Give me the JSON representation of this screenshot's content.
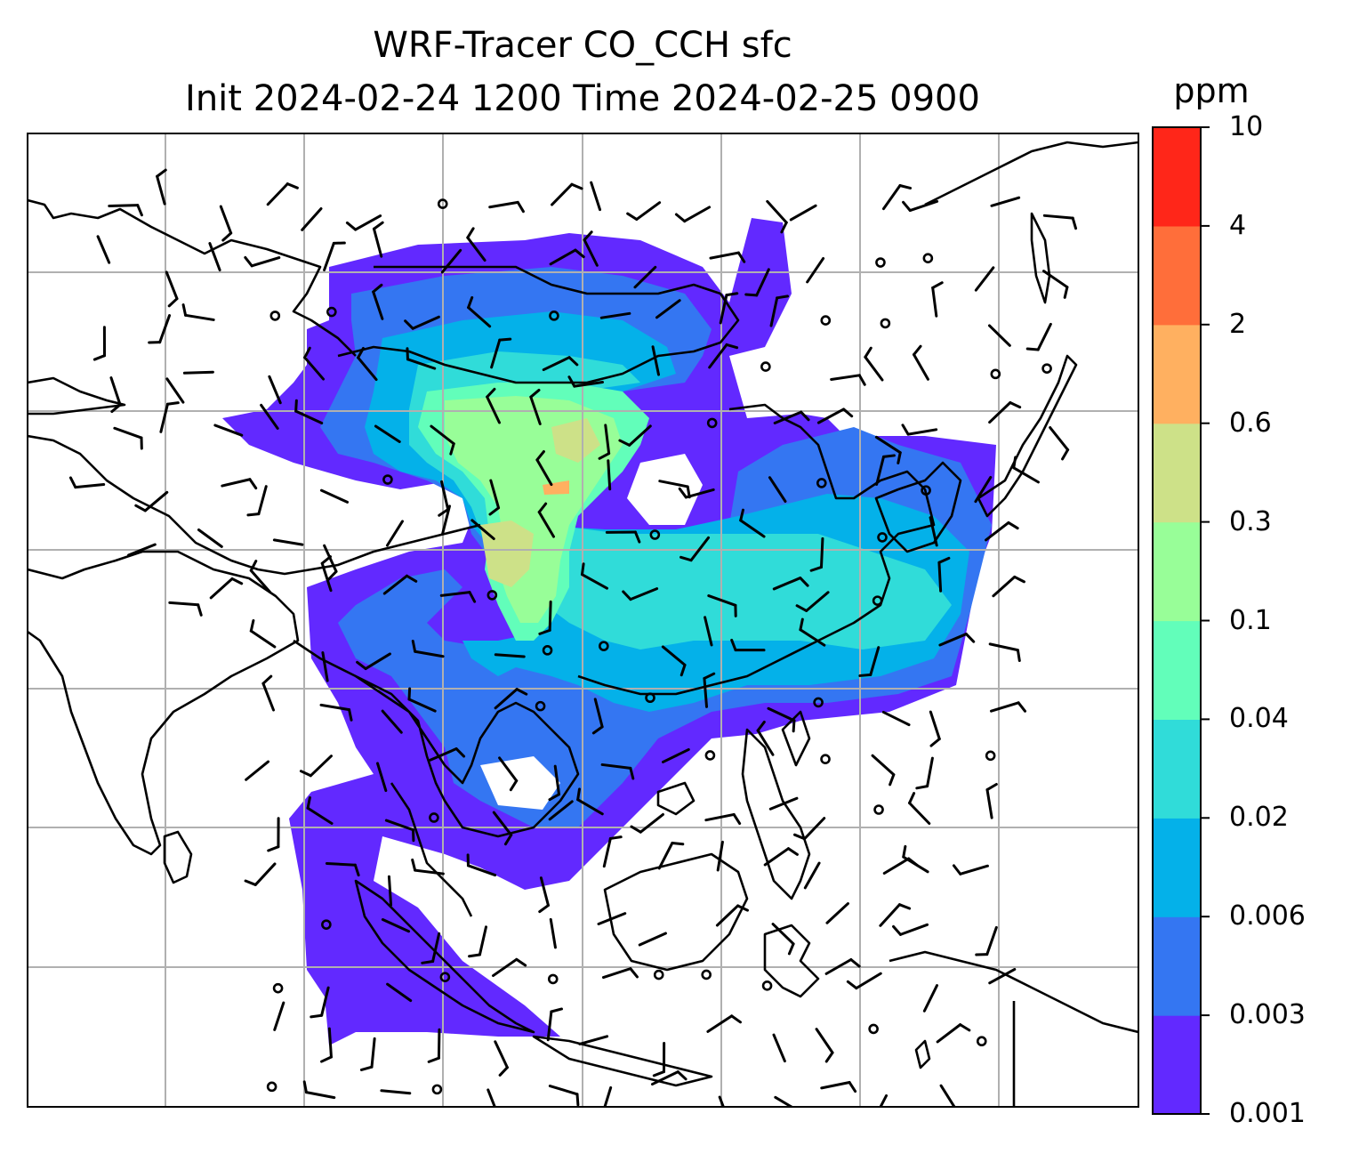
{
  "title": {
    "line1": "WRF-Tracer CO_CCH sfc",
    "line2": "Init 2024-02-24 1200 Time 2024-02-25 0900"
  },
  "colorbar": {
    "unit": "ppm",
    "levels": [
      "0.001",
      "0.003",
      "0.006",
      "0.02",
      "0.04",
      "0.1",
      "0.3",
      "0.6",
      "2",
      "4",
      "10"
    ],
    "colors": [
      "#6229ff",
      "#3476f2",
      "#04b1e9",
      "#30dcd9",
      "#62feba",
      "#98fe98",
      "#cde188",
      "#ffb060",
      "#ff6e3a",
      "#ff2619"
    ]
  },
  "colors": {
    "coastline": "#000000",
    "gridline": "#b0b0b0",
    "barb": "#000000"
  }
}
